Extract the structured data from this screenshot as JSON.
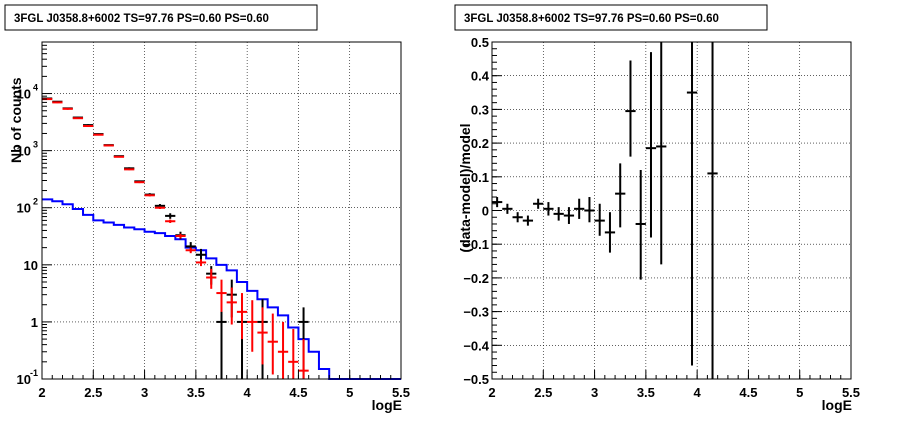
{
  "chart_data": [
    {
      "type": "histogram",
      "title": "3FGL J0358.8+6002 TS=97.76 PS=0.60 PS=0.60",
      "xlabel": "logE",
      "ylabel": "Nb of counts",
      "xlim": [
        2,
        5.5
      ],
      "ylim": [
        0.1,
        80000
      ],
      "log_y": true,
      "grid": true,
      "x_ticks": [
        "2",
        "2.5",
        "3",
        "3.5",
        "4",
        "4.5",
        "5",
        "5.5"
      ],
      "y_ticks": [
        {
          "value": 0.1,
          "label": "10",
          "exp": "-1"
        },
        {
          "value": 1,
          "label": "1",
          "exp": ""
        },
        {
          "value": 10,
          "label": "10",
          "exp": ""
        },
        {
          "value": 100,
          "label": "10",
          "exp": "2"
        },
        {
          "value": 1000,
          "label": "10",
          "exp": "3"
        },
        {
          "value": 10000,
          "label": "10",
          "exp": "4"
        }
      ],
      "bin_edges": [
        2.0,
        2.1,
        2.2,
        2.3,
        2.4,
        2.5,
        2.6,
        2.7,
        2.8,
        2.9,
        3.0,
        3.1,
        3.2,
        3.3,
        3.4,
        3.5,
        3.6,
        3.7,
        3.8,
        3.9,
        4.0,
        4.1,
        4.2,
        4.3,
        4.4,
        4.5,
        4.6,
        4.7,
        4.8,
        4.9,
        5.0,
        5.1,
        5.2,
        5.3,
        5.4,
        5.5
      ],
      "series": [
        {
          "kind": "step",
          "color": "#0000ff",
          "values": [
            140,
            130,
            115,
            95,
            75,
            60,
            55,
            50,
            45,
            42,
            38,
            36,
            32,
            28,
            20,
            18,
            13,
            10,
            8,
            5,
            3.5,
            2.5,
            1.8,
            1.3,
            0.8,
            0.5,
            0.3,
            0.15,
            0.1,
            0.1,
            0.1,
            0.1,
            0.1,
            0.1,
            0.1
          ]
        },
        {
          "kind": "points",
          "color": "#000000",
          "points": [
            {
              "x": 2.05,
              "y": 8200,
              "lo": 8000,
              "hi": 8400
            },
            {
              "x": 2.15,
              "y": 7200,
              "lo": 7000,
              "hi": 7400
            },
            {
              "x": 2.25,
              "y": 5500,
              "lo": 5300,
              "hi": 5700
            },
            {
              "x": 2.35,
              "y": 3800,
              "lo": 3700,
              "hi": 3900
            },
            {
              "x": 2.45,
              "y": 2800,
              "lo": 2700,
              "hi": 2900
            },
            {
              "x": 2.55,
              "y": 1950,
              "lo": 1900,
              "hi": 2000
            },
            {
              "x": 2.65,
              "y": 1250,
              "lo": 1220,
              "hi": 1280
            },
            {
              "x": 2.75,
              "y": 800,
              "lo": 780,
              "hi": 820
            },
            {
              "x": 2.85,
              "y": 490,
              "lo": 470,
              "hi": 510
            },
            {
              "x": 2.95,
              "y": 290,
              "lo": 280,
              "hi": 300
            },
            {
              "x": 3.05,
              "y": 170,
              "lo": 160,
              "hi": 180
            },
            {
              "x": 3.15,
              "y": 108,
              "lo": 100,
              "hi": 116
            },
            {
              "x": 3.25,
              "y": 72,
              "lo": 64,
              "hi": 80
            },
            {
              "x": 3.35,
              "y": 33,
              "lo": 28,
              "hi": 38
            },
            {
              "x": 3.45,
              "y": 21,
              "lo": 17,
              "hi": 25
            },
            {
              "x": 3.55,
              "y": 15,
              "lo": 11,
              "hi": 19
            },
            {
              "x": 3.65,
              "y": 7,
              "lo": 4.5,
              "hi": 9.5
            },
            {
              "x": 3.75,
              "y": 1,
              "lo": 0.1,
              "hi": 3
            },
            {
              "x": 3.85,
              "y": 3,
              "lo": 1.2,
              "hi": 5.5
            },
            {
              "x": 3.95,
              "y": 1,
              "lo": 0.1,
              "hi": 2.8
            },
            {
              "x": 4.15,
              "y": 1,
              "lo": 0.1,
              "hi": 2.5
            },
            {
              "x": 4.55,
              "y": 1,
              "lo": 0.1,
              "hi": 1.8
            }
          ]
        },
        {
          "kind": "points",
          "color": "#ff0000",
          "points": [
            {
              "x": 2.05,
              "y": 8000,
              "lo": 7800,
              "hi": 8200
            },
            {
              "x": 2.15,
              "y": 7000,
              "lo": 6800,
              "hi": 7200
            },
            {
              "x": 2.25,
              "y": 5400,
              "lo": 5200,
              "hi": 5600
            },
            {
              "x": 2.35,
              "y": 3700,
              "lo": 3600,
              "hi": 3800
            },
            {
              "x": 2.45,
              "y": 2700,
              "lo": 2600,
              "hi": 2800
            },
            {
              "x": 2.55,
              "y": 1900,
              "lo": 1850,
              "hi": 1950
            },
            {
              "x": 2.65,
              "y": 1230,
              "lo": 1200,
              "hi": 1260
            },
            {
              "x": 2.75,
              "y": 780,
              "lo": 760,
              "hi": 800
            },
            {
              "x": 2.85,
              "y": 470,
              "lo": 455,
              "hi": 485
            },
            {
              "x": 2.95,
              "y": 280,
              "lo": 270,
              "hi": 290
            },
            {
              "x": 3.05,
              "y": 165,
              "lo": 158,
              "hi": 172
            },
            {
              "x": 3.15,
              "y": 100,
              "lo": 95,
              "hi": 105
            },
            {
              "x": 3.25,
              "y": 58,
              "lo": 54,
              "hi": 62
            },
            {
              "x": 3.35,
              "y": 32,
              "lo": 29,
              "hi": 35
            },
            {
              "x": 3.45,
              "y": 18,
              "lo": 16,
              "hi": 20
            },
            {
              "x": 3.55,
              "y": 11,
              "lo": 9.5,
              "hi": 12.5
            },
            {
              "x": 3.65,
              "y": 6,
              "lo": 3.8,
              "hi": 8.5
            },
            {
              "x": 3.75,
              "y": 3.2,
              "lo": 1.5,
              "hi": 5.5
            },
            {
              "x": 3.85,
              "y": 2.2,
              "lo": 0.9,
              "hi": 4
            },
            {
              "x": 3.95,
              "y": 1.5,
              "lo": 0.5,
              "hi": 3.2
            },
            {
              "x": 4.05,
              "y": 1.0,
              "lo": 0.3,
              "hi": 2.4
            },
            {
              "x": 4.15,
              "y": 0.65,
              "lo": 0.18,
              "hi": 1.8
            },
            {
              "x": 4.25,
              "y": 0.45,
              "lo": 0.12,
              "hi": 1.4
            },
            {
              "x": 4.35,
              "y": 0.3,
              "lo": 0.1,
              "hi": 1.0
            },
            {
              "x": 4.45,
              "y": 0.2,
              "lo": 0.1,
              "hi": 0.75
            },
            {
              "x": 4.55,
              "y": 0.14,
              "lo": 0.1,
              "hi": 0.5
            }
          ]
        }
      ]
    },
    {
      "type": "scatter",
      "title": "3FGL J0358.8+6002 TS=97.76 PS=0.60 PS=0.60",
      "xlabel": "logE",
      "ylabel": "(data-model)/model",
      "xlim": [
        2,
        5.5
      ],
      "ylim": [
        -0.5,
        0.5
      ],
      "grid": true,
      "x_ticks": [
        "2",
        "2.5",
        "3",
        "3.5",
        "4",
        "4.5",
        "5",
        "5.5"
      ],
      "y_ticks": [
        "-0.5",
        "-0.4",
        "-0.3",
        "-0.2",
        "-0.1",
        "0",
        "0.1",
        "0.2",
        "0.3",
        "0.4",
        "0.5"
      ],
      "series": [
        {
          "color": "#000000",
          "points": [
            {
              "x": 2.05,
              "y": 0.025,
              "lo": 0.01,
              "hi": 0.04
            },
            {
              "x": 2.15,
              "y": 0.005,
              "lo": -0.01,
              "hi": 0.02
            },
            {
              "x": 2.25,
              "y": -0.02,
              "lo": -0.035,
              "hi": -0.005
            },
            {
              "x": 2.35,
              "y": -0.03,
              "lo": -0.045,
              "hi": -0.015
            },
            {
              "x": 2.45,
              "y": 0.02,
              "lo": 0.005,
              "hi": 0.035
            },
            {
              "x": 2.55,
              "y": 0.005,
              "lo": -0.015,
              "hi": 0.025
            },
            {
              "x": 2.65,
              "y": -0.01,
              "lo": -0.03,
              "hi": 0.01
            },
            {
              "x": 2.75,
              "y": -0.015,
              "lo": -0.04,
              "hi": 0.01
            },
            {
              "x": 2.85,
              "y": 0.005,
              "lo": -0.025,
              "hi": 0.035
            },
            {
              "x": 2.95,
              "y": 0.0,
              "lo": -0.035,
              "hi": 0.04
            },
            {
              "x": 3.05,
              "y": -0.03,
              "lo": -0.075,
              "hi": 0.02
            },
            {
              "x": 3.15,
              "y": -0.065,
              "lo": -0.125,
              "hi": -0.005
            },
            {
              "x": 3.25,
              "y": 0.05,
              "lo": -0.05,
              "hi": 0.14
            },
            {
              "x": 3.35,
              "y": 0.295,
              "lo": 0.16,
              "hi": 0.445
            },
            {
              "x": 3.45,
              "y": -0.04,
              "lo": -0.205,
              "hi": 0.12
            },
            {
              "x": 3.55,
              "y": 0.185,
              "lo": -0.08,
              "hi": 0.47
            },
            {
              "x": 3.65,
              "y": 0.19,
              "lo": -0.16,
              "hi": 0.5
            },
            {
              "x": 3.95,
              "y": 0.35,
              "lo": -0.46,
              "hi": 0.5
            },
            {
              "x": 4.15,
              "y": 0.11,
              "lo": -0.5,
              "hi": 0.5
            }
          ]
        }
      ]
    }
  ]
}
